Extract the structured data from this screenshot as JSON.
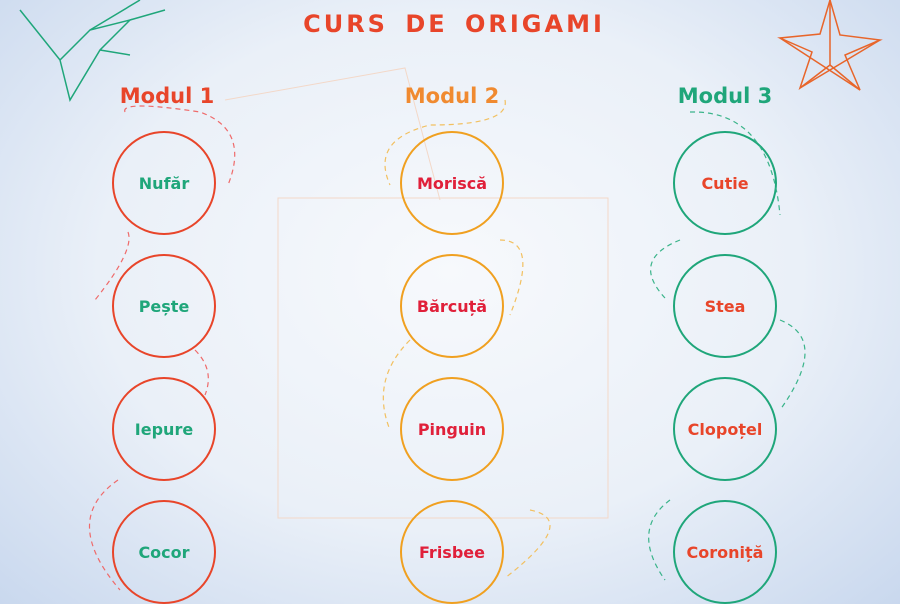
{
  "title": "CURS DE ORIGAMI",
  "colors": {
    "red": "#e8452a",
    "orange": "#f0a020",
    "green": "#1fa67a",
    "crimson": "#e0203a"
  },
  "modules": [
    {
      "name": "Modul 1",
      "items": [
        "Nufăr",
        "Pește",
        "Iepure",
        "Cocor"
      ]
    },
    {
      "name": "Modul 2",
      "items": [
        "Moriscă",
        "Bărcuță",
        "Pinguin",
        "Frisbee"
      ]
    },
    {
      "name": "Modul 3",
      "items": [
        "Cutie",
        "Stea",
        "Clopoțel",
        "Coroniță"
      ]
    }
  ],
  "decorations": [
    "origami-crane-icon",
    "origami-star-icon"
  ]
}
